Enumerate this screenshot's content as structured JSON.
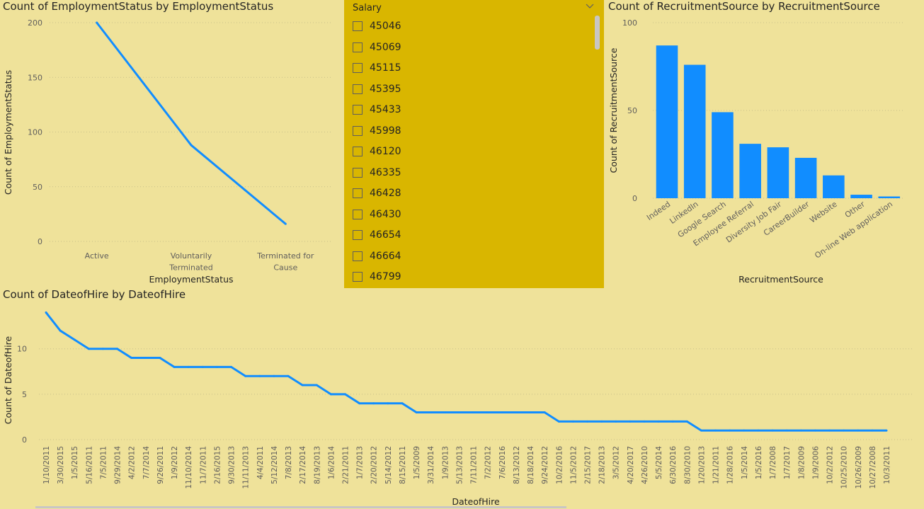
{
  "slicer": {
    "header": "Salary",
    "chevron_icon": "chevron-down-icon",
    "items": [
      "45046",
      "45069",
      "45115",
      "45395",
      "45433",
      "45998",
      "46120",
      "46335",
      "46428",
      "46430",
      "46654",
      "46664",
      "46799"
    ]
  },
  "chart_data": [
    {
      "id": "employment",
      "type": "line",
      "title": "Count of EmploymentStatus by EmploymentStatus",
      "xlabel": "EmploymentStatus",
      "ylabel": "Count of EmploymentStatus",
      "categories": [
        "Active",
        "Voluntarily Terminated",
        "Terminated for Cause"
      ],
      "category_lines": [
        [
          "Active"
        ],
        [
          "Voluntarily",
          "Terminated"
        ],
        [
          "Terminated for",
          "Cause"
        ]
      ],
      "values": [
        200,
        88,
        16
      ],
      "ylim": [
        0,
        200
      ],
      "yticks": [
        0,
        50,
        100,
        150,
        200
      ],
      "grid": true,
      "color": "#118dff"
    },
    {
      "id": "recruitment",
      "type": "bar",
      "title": "Count of RecruitmentSource by RecruitmentSource",
      "xlabel": "RecruitmentSource",
      "ylabel": "Count of RecruitmentSource",
      "categories": [
        "Indeed",
        "LinkedIn",
        "Google Search",
        "Employee Referral",
        "Diversity Job Fair",
        "CareerBuilder",
        "Website",
        "Other",
        "On-line Web application"
      ],
      "values": [
        87,
        76,
        49,
        31,
        29,
        23,
        13,
        2,
        1
      ],
      "ylim": [
        0,
        100
      ],
      "yticks": [
        0,
        50,
        100
      ],
      "grid": true,
      "color": "#118dff"
    },
    {
      "id": "hire",
      "type": "line",
      "title": "Count of DateofHire by DateofHire",
      "xlabel": "DateofHire",
      "ylabel": "Count of DateofHire",
      "categories": [
        "1/10/2011",
        "3/30/2015",
        "1/5/2015",
        "5/16/2011",
        "7/5/2011",
        "9/29/2014",
        "4/2/2012",
        "7/7/2014",
        "9/26/2011",
        "1/9/2012",
        "11/10/2014",
        "11/7/2011",
        "2/16/2015",
        "9/30/2013",
        "11/11/2013",
        "4/4/2011",
        "5/12/2014",
        "7/8/2013",
        "2/17/2014",
        "8/19/2013",
        "1/6/2014",
        "2/21/2011",
        "1/7/2013",
        "2/20/2012",
        "5/14/2012",
        "8/15/2011",
        "1/5/2009",
        "3/31/2014",
        "1/9/2013",
        "5/13/2013",
        "7/11/2011",
        "7/2/2012",
        "7/6/2016",
        "8/13/2012",
        "8/18/2014",
        "9/24/2012",
        "10/2/2016",
        "11/5/2012",
        "2/15/2017",
        "2/18/2013",
        "3/5/2012",
        "4/20/2017",
        "4/26/2010",
        "5/5/2014",
        "6/30/2016",
        "8/30/2010",
        "1/20/2013",
        "1/21/2011",
        "1/28/2016",
        "1/5/2014",
        "1/5/2016",
        "1/7/2008",
        "1/7/2017",
        "1/8/2009",
        "1/9/2006",
        "10/2/2012",
        "10/25/2010",
        "10/26/2009",
        "10/27/2008",
        "10/3/2011"
      ],
      "values": [
        14,
        12,
        11,
        10,
        10,
        10,
        9,
        9,
        9,
        8,
        8,
        8,
        8,
        8,
        7,
        7,
        7,
        7,
        6,
        6,
        5,
        5,
        4,
        4,
        4,
        4,
        3,
        3,
        3,
        3,
        3,
        3,
        3,
        3,
        3,
        3,
        2,
        2,
        2,
        2,
        2,
        2,
        2,
        2,
        2,
        2,
        1,
        1,
        1,
        1,
        1,
        1,
        1,
        1,
        1,
        1,
        1,
        1,
        1,
        1
      ],
      "ylim": [
        0,
        14.5
      ],
      "yticks": [
        0,
        5,
        10
      ],
      "grid": true,
      "color": "#118dff"
    }
  ]
}
